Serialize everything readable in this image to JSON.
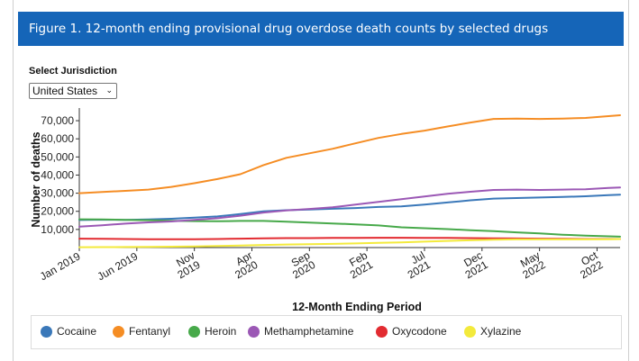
{
  "header": {
    "title": "Figure 1. 12-month ending provisional drug overdose death counts by selected drugs"
  },
  "jurisdiction": {
    "label": "Select Jurisdiction",
    "selected": "United States"
  },
  "chart_data": {
    "type": "line",
    "xlabel": "12-Month Ending Period",
    "ylabel": "Number of deaths",
    "ylim": [
      0,
      75000
    ],
    "y_ticks": [
      10000,
      20000,
      30000,
      40000,
      50000,
      60000,
      70000
    ],
    "y_tick_labels": [
      "10,000",
      "20,000",
      "30,000",
      "40,000",
      "50,000",
      "60,000",
      "70,000"
    ],
    "x_range": [
      "2019-01",
      "2022-12"
    ],
    "x_ticks": [
      {
        "date": "2019-01",
        "lines": [
          "Jan 2019"
        ]
      },
      {
        "date": "2019-06",
        "lines": [
          "Jun 2019"
        ]
      },
      {
        "date": "2019-11",
        "lines": [
          "Nov",
          "2019"
        ]
      },
      {
        "date": "2020-04",
        "lines": [
          "Apr",
          "2020"
        ]
      },
      {
        "date": "2020-09",
        "lines": [
          "Sep",
          "2020"
        ]
      },
      {
        "date": "2021-02",
        "lines": [
          "Feb",
          "2021"
        ]
      },
      {
        "date": "2021-07",
        "lines": [
          "Jul",
          "2021"
        ]
      },
      {
        "date": "2021-12",
        "lines": [
          "Dec",
          "2021"
        ]
      },
      {
        "date": "2022-05",
        "lines": [
          "May",
          "2022"
        ]
      },
      {
        "date": "2022-10",
        "lines": [
          "Oct",
          "2022"
        ]
      }
    ],
    "grid": false,
    "legend_position": "bottom",
    "x": [
      "2019-01",
      "2019-03",
      "2019-05",
      "2019-07",
      "2019-09",
      "2019-11",
      "2020-01",
      "2020-03",
      "2020-05",
      "2020-07",
      "2020-09",
      "2020-11",
      "2021-01",
      "2021-03",
      "2021-05",
      "2021-07",
      "2021-09",
      "2021-11",
      "2022-01",
      "2022-03",
      "2022-05",
      "2022-07",
      "2022-09",
      "2022-11",
      "2022-12"
    ],
    "series": [
      {
        "name": "Cocaine",
        "color": "#3a78b9",
        "values": [
          15200,
          15400,
          15300,
          15500,
          15900,
          16500,
          17200,
          18500,
          20000,
          20600,
          21000,
          21400,
          21800,
          22400,
          22700,
          23700,
          24900,
          26100,
          27000,
          27300,
          27600,
          27900,
          28300,
          28900,
          29200
        ]
      },
      {
        "name": "Fentanyl",
        "color": "#f58d24",
        "values": [
          30000,
          30700,
          31300,
          32000,
          33500,
          35500,
          37800,
          40500,
          45500,
          49500,
          52000,
          54500,
          57500,
          60500,
          62700,
          64500,
          66800,
          69000,
          71000,
          71200,
          71000,
          71200,
          71500,
          72500,
          73000
        ]
      },
      {
        "name": "Heroin",
        "color": "#47a94a",
        "values": [
          15600,
          15500,
          15300,
          15100,
          14800,
          14600,
          14500,
          14700,
          14700,
          14300,
          13800,
          13300,
          12800,
          12200,
          11200,
          10700,
          10200,
          9600,
          9100,
          8400,
          7800,
          7100,
          6600,
          6200,
          6000
        ]
      },
      {
        "name": "Methamphetamine",
        "color": "#9b58b5",
        "values": [
          11500,
          12300,
          13200,
          13900,
          14400,
          15300,
          16200,
          17600,
          19300,
          20500,
          21300,
          22200,
          23700,
          25200,
          26700,
          28200,
          29700,
          30800,
          31800,
          32000,
          31800,
          32000,
          32200,
          32900,
          33200
        ]
      },
      {
        "name": "Oxycodone",
        "color": "#e22b31",
        "values": [
          4900,
          4800,
          4700,
          4600,
          4600,
          4600,
          4700,
          4900,
          5100,
          5200,
          5200,
          5300,
          5300,
          5400,
          5400,
          5300,
          5300,
          5200,
          5100,
          5000,
          4900,
          4800,
          4700,
          4700,
          4700
        ]
      },
      {
        "name": "Xylazine",
        "color": "#f3ea3c",
        "values": [
          200,
          250,
          300,
          400,
          500,
          650,
          850,
          1100,
          1450,
          1700,
          1850,
          2050,
          2300,
          2600,
          2900,
          3300,
          3700,
          4000,
          4300,
          4500,
          4500,
          4500,
          4500,
          4600,
          4700
        ]
      }
    ]
  }
}
